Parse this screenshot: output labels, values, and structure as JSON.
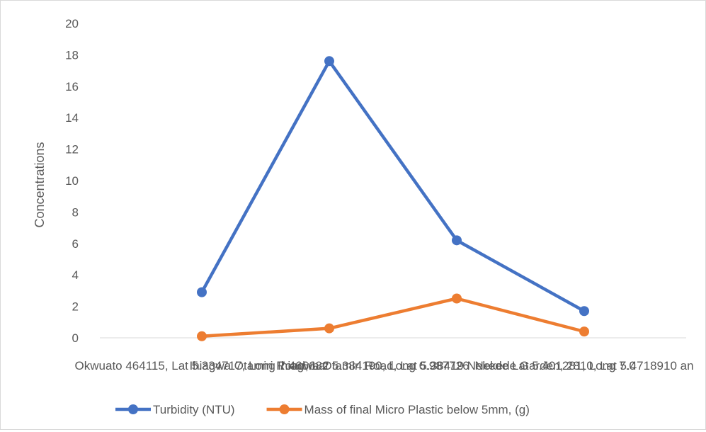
{
  "chart_data": {
    "type": "line",
    "categories": [
      "Okwuato 464115, Lat 5.334717, Long 7.466682",
      "Ihiagwa Otamiri Road, Lat 5.384190, Long 6.987726",
      "Ihiagwa Otamiri Road, Lat 5.38419 Nekede Lat 5.401281, Long 7.0",
      "Nekede Garden, 2810, Lat 5.4718910 an"
    ],
    "series": [
      {
        "name": "Turbidity (NTU)",
        "color": "#4472C4",
        "values": [
          2.9,
          17.6,
          6.2,
          1.7
        ]
      },
      {
        "name": "Mass of final Micro Plastic below 5mm, (g)",
        "color": "#ED7D31",
        "values": [
          0.1,
          0.6,
          2.5,
          0.4
        ]
      }
    ],
    "ylabel": "Concentrations",
    "xlabel": "",
    "ylim": [
      0,
      20
    ],
    "yticks": [
      0,
      2,
      4,
      6,
      8,
      10,
      12,
      14,
      16,
      18,
      20
    ],
    "grid": false,
    "legend_position": "bottom"
  }
}
